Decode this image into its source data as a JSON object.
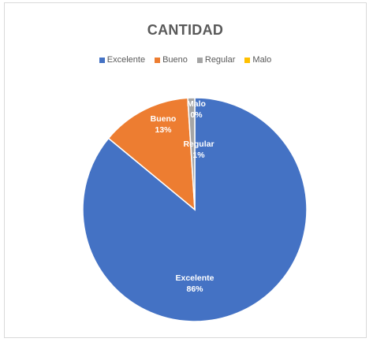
{
  "chart_data": {
    "type": "pie",
    "title": "CANTIDAD",
    "categories": [
      "Excelente",
      "Bueno",
      "Regular",
      "Malo"
    ],
    "values": [
      86,
      13,
      1,
      0
    ],
    "labels": [
      "86%",
      "13%",
      "1%",
      "0%"
    ],
    "colors": [
      "#4472c4",
      "#ed7d31",
      "#a5a5a5",
      "#ffc000"
    ],
    "legend_position": "top"
  }
}
